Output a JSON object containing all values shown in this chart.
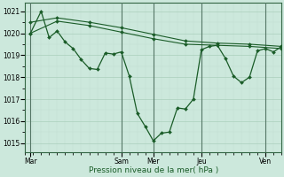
{
  "background_color": "#cce8dc",
  "grid_major_color": "#aacfbc",
  "grid_minor_color": "#c0ddd0",
  "vline_color": "#557766",
  "line_color": "#1a5c28",
  "xlabel": "Pression niveau de la mer( hPa )",
  "xlabel_color": "#1a5c28",
  "ylim": [
    1014.6,
    1021.4
  ],
  "yticks": [
    1015,
    1016,
    1017,
    1018,
    1019,
    1020,
    1021
  ],
  "xlim": [
    0,
    96
  ],
  "xtick_positions": [
    2,
    36,
    48,
    66,
    90
  ],
  "xtick_labels": [
    "Mar",
    "Sam",
    "Mer",
    "Jeu",
    "Ven"
  ],
  "vline_positions": [
    2,
    36,
    48,
    66,
    90
  ],
  "line1_x": [
    2,
    6,
    9,
    12,
    15,
    18,
    21,
    24,
    27,
    30,
    33,
    36,
    39,
    42,
    45,
    48,
    51,
    54,
    57,
    60,
    63,
    66,
    69,
    72,
    75,
    78,
    81,
    84,
    87,
    90,
    93,
    96
  ],
  "line1_y": [
    1020.0,
    1021.0,
    1019.8,
    1020.1,
    1019.6,
    1019.3,
    1018.8,
    1018.4,
    1018.35,
    1019.1,
    1019.05,
    1019.15,
    1018.05,
    1016.35,
    1015.75,
    1015.1,
    1015.45,
    1015.5,
    1016.6,
    1016.55,
    1017.0,
    1019.25,
    1019.4,
    1019.45,
    1018.85,
    1018.05,
    1017.75,
    1018.0,
    1019.2,
    1019.3,
    1019.15,
    1019.4
  ],
  "line2_x": [
    2,
    12,
    24,
    36,
    48,
    60,
    72,
    84,
    96
  ],
  "line2_y": [
    1020.5,
    1020.7,
    1020.5,
    1020.25,
    1019.95,
    1019.65,
    1019.55,
    1019.5,
    1019.4
  ],
  "line3_x": [
    2,
    12,
    24,
    36,
    48,
    60,
    72,
    84,
    96
  ],
  "line3_y": [
    1020.0,
    1020.55,
    1020.35,
    1020.05,
    1019.75,
    1019.5,
    1019.45,
    1019.4,
    1019.3
  ]
}
